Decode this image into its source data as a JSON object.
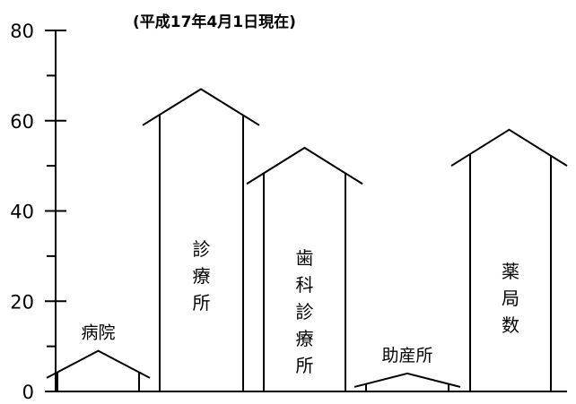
{
  "chart_data": {
    "type": "bar",
    "subtitle": "(平成17年4月1日現在)",
    "categories": [
      "病院",
      "診療所",
      "歯科診療所",
      "助産所",
      "薬局数"
    ],
    "values": [
      3,
      59,
      46,
      1,
      50
    ],
    "roof_peaks": [
      9,
      67,
      54,
      4,
      58
    ],
    "ylim": [
      0,
      80
    ],
    "yticks": [
      0,
      20,
      40,
      60,
      80
    ],
    "ytick_labels": [
      "0",
      "20",
      "40",
      "60",
      "80"
    ],
    "ylabel": "",
    "xlabel": "",
    "grid": false,
    "legend": "none",
    "label_placement": [
      "above",
      "inside",
      "inside",
      "above",
      "inside"
    ],
    "colors": {
      "stroke": "#000000",
      "fill": "#ffffff"
    }
  }
}
